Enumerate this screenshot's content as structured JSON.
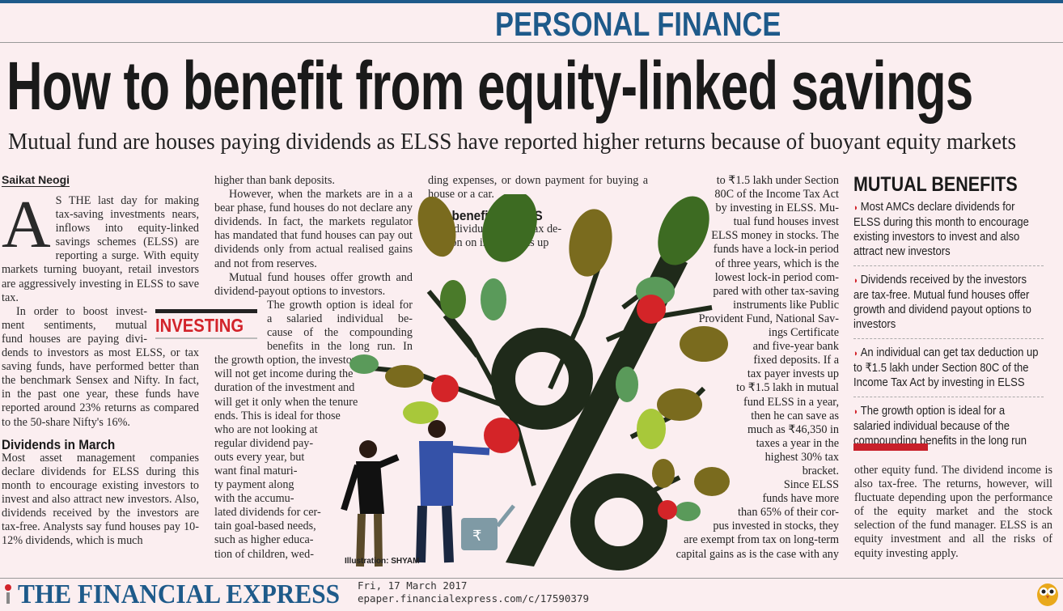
{
  "section": "PERSONAL FINANCE",
  "headline": "How to benefit from equity-linked savings",
  "subtitle": "Mutual fund are houses paying dividends as ELSS have reported higher returns because of buoyant equity markets",
  "byline": "Saikat Neogi",
  "tag": "INVESTING",
  "col1": {
    "drop_cap": "A",
    "p1": "S THE last day for making tax-saving investments nears, inflows into equity-linked savings schemes (ELSS) are reporting a surge. With equity markets turning buoyant, retail investors are aggressively investing in ELSS to save tax.",
    "p2a": [
      "In order to boost invest-",
      "ment sentiments, mutual",
      "fund houses are paying divi-"
    ],
    "p2b": "dends to investors as most ELSS, or tax saving funds, have performed better than the benchmark Sensex and Nifty. In fact, in the past one year, these funds have reported around 23% returns as compared to the 50-share Nifty's 16%.",
    "h_dividends": "Dividends in March",
    "p3": "Most asset management companies declare dividends for ELSS during this month to encourage existing investors to invest and also attract new investors. Also, dividends received by the investors are tax-free. Analysts say fund houses pay 10-12% dividends, which is much"
  },
  "col2": {
    "p1": "higher than bank deposits.",
    "p2": "However, when the markets are in a a bear phase, fund houses do not declare any dividends. In fact, the markets regulator has mandated that fund houses can pay out dividends only from actual realised gains and not from reserves.",
    "p3": "Mutual fund houses offer growth and dividend-payout options to investors.",
    "wrap_lines": [
      "The growth option is ideal for",
      "a salaried individual be-",
      "cause of the compounding",
      "benefits in the long run. In"
    ],
    "lines": [
      "the growth option, the investor",
      "will not get income during the",
      "duration of the investment and",
      "will get it only when the tenure",
      "ends. This is ideal for those",
      "who are not looking at",
      "regular dividend pay-",
      "outs every year, but",
      "want final maturi-",
      "ty payment along",
      "with the accumu-",
      "lated dividends for cer-",
      "tain goal-based needs,",
      "such as higher educa-",
      "tion of children, wed-"
    ]
  },
  "col3": {
    "p1": "ding expenses, or down payment for buying a house or a car.",
    "h_tax": "Tax benefit in ELSS",
    "lines": [
      "An individual can get tax de-",
      "duction on investments up"
    ]
  },
  "col4": {
    "lines": [
      "to ₹1.5 lakh under Section",
      "80C of the Income Tax Act",
      "by investing in ELSS. Mu-",
      "tual fund houses invest",
      "ELSS money in stocks. The",
      "funds have a lock-in period",
      "of three years, which is the",
      "lowest lock-in period com-",
      "pared with other tax-saving",
      "instruments like Public",
      "Provident Fund, National Sav-",
      "ings Certificate",
      "and five-year bank",
      "fixed deposits. If a",
      "tax payer invests up",
      "to ₹1.5 lakh in mutual",
      "fund ELSS in a year,",
      "then he can save as",
      "much as ₹46,350 in",
      "taxes a year in the",
      "highest 30% tax",
      "bracket.",
      "Since ELSS",
      "funds have more",
      "than 65% of their cor-",
      "pus invested in stocks, they",
      "are exempt from tax on long-term",
      "capital gains as is the case with any"
    ]
  },
  "sidebar": {
    "title": "MUTUAL BENEFITS",
    "bullets": [
      "Most AMCs declare dividends for ELSS during this month to encourage existing investors to invest and also attract new investors",
      "Dividends received by the investors are tax-free. Mutual fund houses offer growth and dividend payout options to investors",
      "An individual can get tax deduction up to ₹1.5 lakh under Section 80C of the Income Tax Act by investing in ELSS",
      "The growth option is ideal for a salaried individual because of the compounding benefits in the long run"
    ],
    "accent": "#c8202a"
  },
  "col5": "other equity fund. The dividend income is also tax-free. The returns, however, will fluctuate depending upon the performance of the equity market and the stock selection of the fund manager. ELSS is an equity investment and all the risks of equity investing apply.",
  "illustration": {
    "credit": "Illustration: SHYAM",
    "can_symbol": "₹"
  },
  "footer": {
    "logo": "THE FINANCIAL EXPRESS",
    "date": "Fri, 17 March 2017",
    "url": "epaper.financialexpress.com/c/17590379"
  },
  "colors": {
    "brand_blue": "#1e5a8a",
    "accent_red": "#d2232a",
    "background": "#fbeef0"
  }
}
